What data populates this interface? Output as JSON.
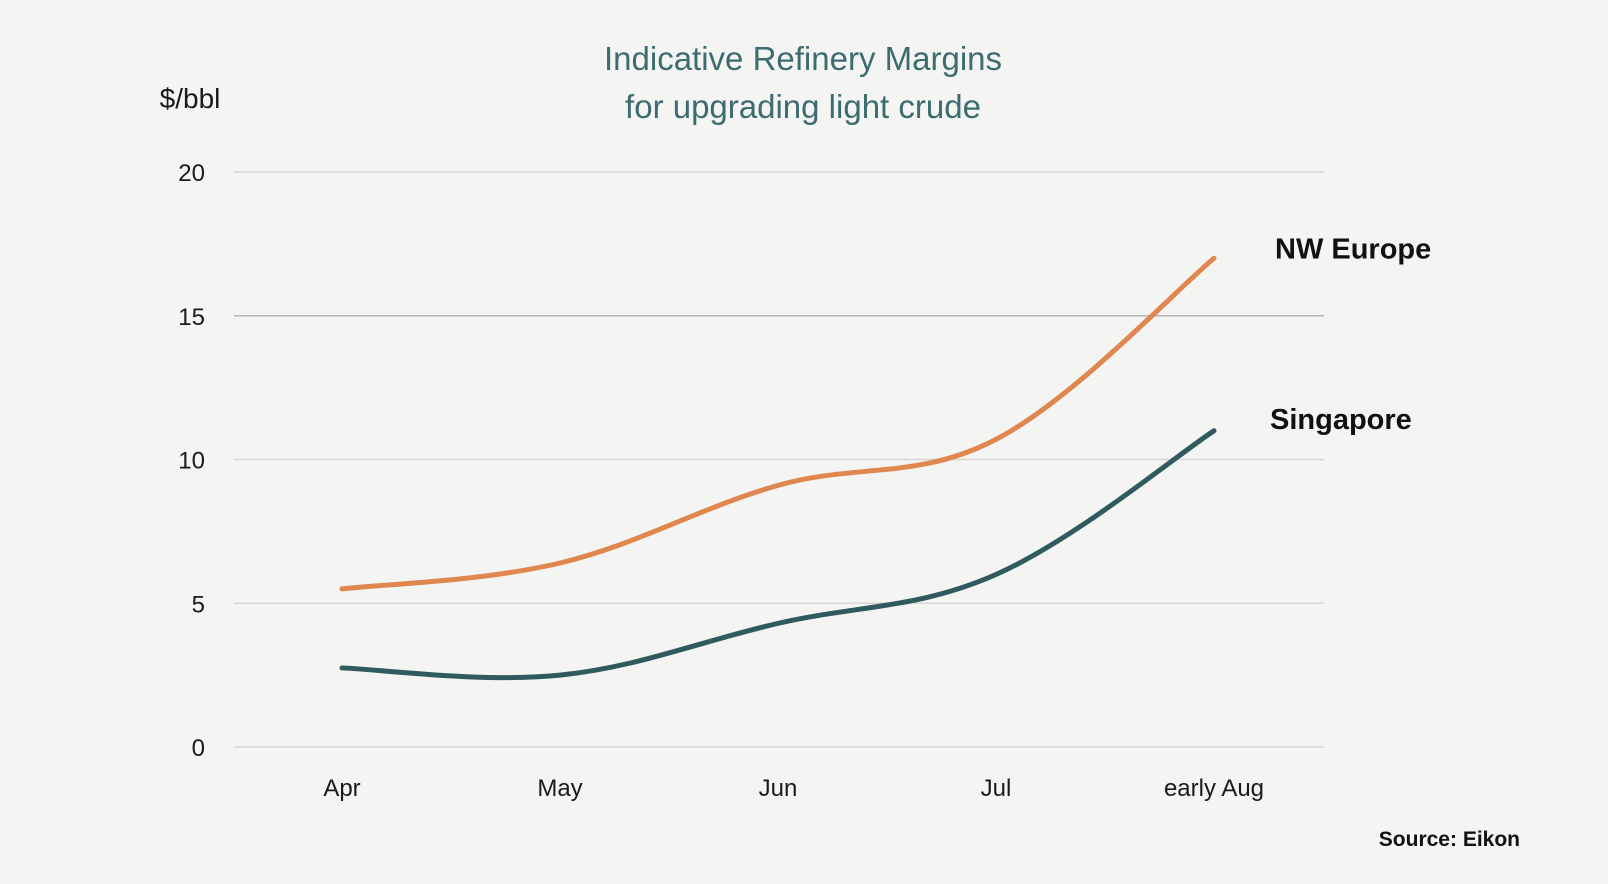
{
  "chart_data": {
    "type": "line",
    "title": [
      "Indicative Refinery Margins",
      "for upgrading light crude"
    ],
    "ylabel": "$/bbl",
    "xlabel": "",
    "categories": [
      "Apr",
      "May",
      "Jun",
      "Jul",
      "early Aug"
    ],
    "ylim": [
      0,
      20
    ],
    "yticks": [
      0,
      5,
      10,
      15,
      20
    ],
    "grid": true,
    "legend": "direct labels at line ends (right)",
    "series": [
      {
        "name": "NW Europe",
        "color": "#e0874f",
        "values": [
          5.5,
          6.4,
          9.1,
          10.7,
          17.0
        ]
      },
      {
        "name": "Singapore",
        "color": "#2f5a5e",
        "values": [
          2.75,
          2.5,
          4.3,
          6.0,
          11.0
        ]
      }
    ],
    "source": "Source: Eikon"
  }
}
